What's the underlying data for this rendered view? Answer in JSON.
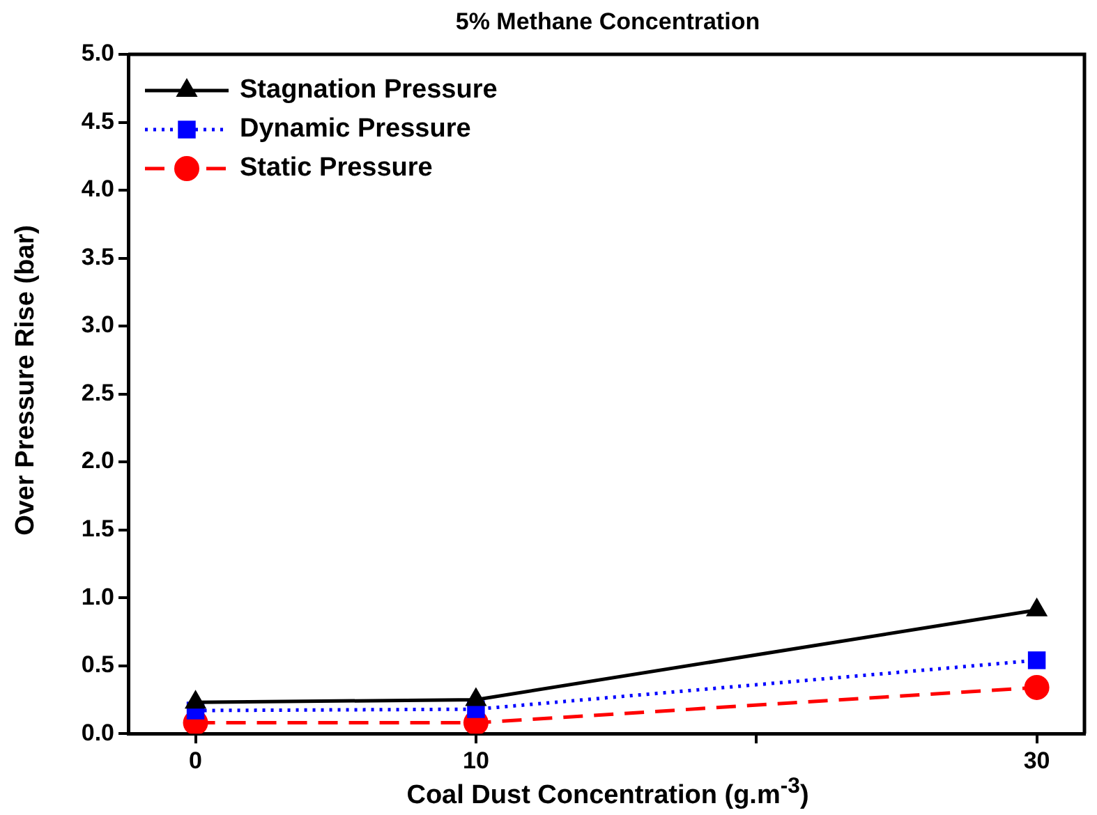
{
  "chart_data": {
    "type": "line",
    "title": "5% Methane Concentration",
    "xlabel": "Coal Dust Concentration (g.m$^{-3}$)",
    "ylabel": "Over Pressure Rise (bar)",
    "x": [
      0,
      10,
      30
    ],
    "xlim": [
      -2.4,
      31.7
    ],
    "xticks": [
      0,
      10,
      {
        "value": 20,
        "label": null
      },
      30
    ],
    "ylim": [
      0,
      5
    ],
    "yticks": [
      {
        "value": 0,
        "label": "0.0"
      },
      {
        "value": 0.5,
        "label": "0.5"
      },
      {
        "value": 1,
        "label": "1.0"
      },
      {
        "value": 1.5,
        "label": "1.5"
      },
      {
        "value": 2,
        "label": "2.0"
      },
      {
        "value": 2.5,
        "label": "2.5"
      },
      {
        "value": 3,
        "label": "3.0"
      },
      {
        "value": 3.5,
        "label": "3.5"
      },
      {
        "value": 4,
        "label": "4.0"
      },
      {
        "value": 4.5,
        "label": "4.5"
      },
      {
        "value": 5,
        "label": "5.0"
      }
    ],
    "grid": false,
    "legend": "top left",
    "series": [
      {
        "name": "Stagnation Pressure",
        "color": "#000000",
        "marker": "triangle",
        "line_style": "solid",
        "values": [
          0.23,
          0.25,
          0.91
        ]
      },
      {
        "name": "Dynamic Pressure",
        "color": "#0000ff",
        "marker": "square",
        "line_style": "dotted",
        "values": [
          0.17,
          0.18,
          0.54
        ]
      },
      {
        "name": "Static Pressure",
        "color": "#ff0000",
        "marker": "circle",
        "line_style": "dashed",
        "values": [
          0.08,
          0.08,
          0.34
        ]
      }
    ]
  }
}
